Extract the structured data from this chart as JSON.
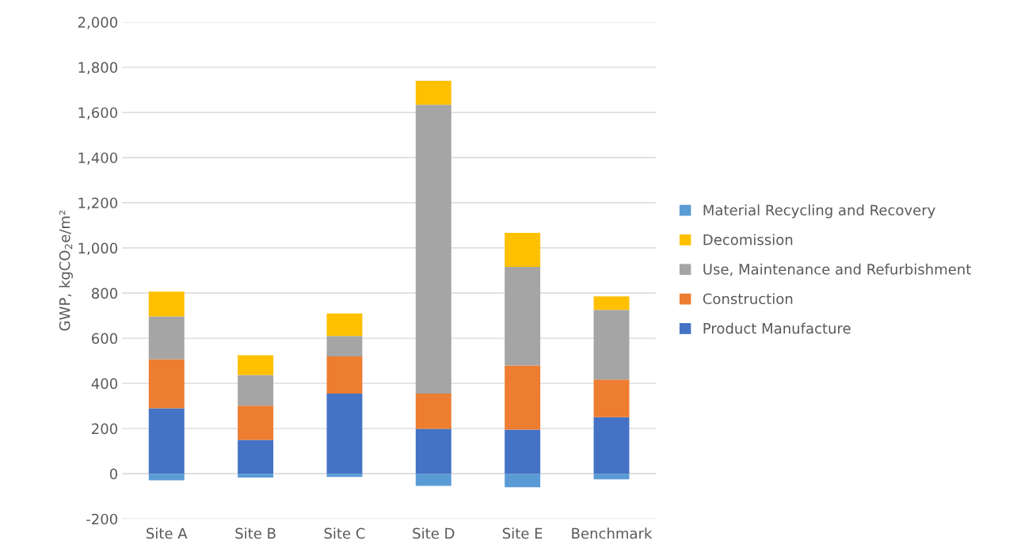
{
  "chart_data": {
    "type": "bar",
    "stacked": true,
    "ylabel": "GWP, kgCO$_{2}$e/m²",
    "categories": [
      "Site A",
      "Site B",
      "Site C",
      "Site D",
      "Site E",
      "Benchmark"
    ],
    "series": [
      {
        "name": "Product Manufacture",
        "color": "#4472c4",
        "values": [
          290,
          150,
          355,
          199,
          195,
          250
        ]
      },
      {
        "name": "Construction",
        "color": "#ed7d31",
        "values": [
          217,
          151,
          165,
          156,
          284,
          167
        ]
      },
      {
        "name": "Use, Maintenance and Refurbishment",
        "color": "#a5a5a5",
        "values": [
          190,
          136,
          90,
          1279,
          437,
          309
        ]
      },
      {
        "name": "Decomission",
        "color": "#ffc000",
        "values": [
          109,
          88,
          100,
          106,
          151,
          59
        ]
      },
      {
        "name": "Material Recycling and Recovery",
        "color": "#5b9bd5",
        "values": [
          -29,
          -17,
          -14,
          -54,
          -60,
          -25
        ]
      }
    ],
    "ylim": [
      -200,
      2000
    ],
    "yticks": [
      {
        "value": -200,
        "label": "-200"
      },
      {
        "value": 0,
        "label": "0"
      },
      {
        "value": 200,
        "label": "200"
      },
      {
        "value": 400,
        "label": "400"
      },
      {
        "value": 600,
        "label": "600"
      },
      {
        "value": 800,
        "label": "800"
      },
      {
        "value": 1000,
        "label": "1,000"
      },
      {
        "value": 1200,
        "label": "1,200"
      },
      {
        "value": 1400,
        "label": "1,400"
      },
      {
        "value": 1600,
        "label": "1,600"
      },
      {
        "value": 1800,
        "label": "1,800"
      },
      {
        "value": 2000,
        "label": "2,000"
      }
    ],
    "grid": "y",
    "legend": "right"
  }
}
